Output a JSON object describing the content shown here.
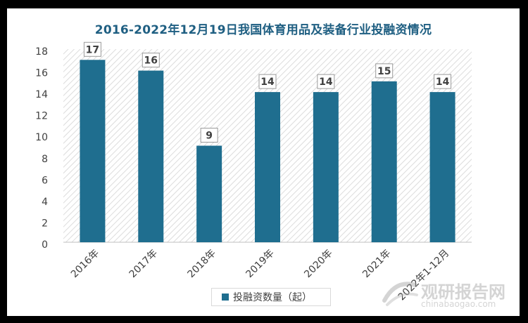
{
  "chart_data": {
    "type": "bar",
    "title": "2016-2022年12月19日我国体育用品及装备行业投融资情况",
    "categories": [
      "2016年",
      "2017年",
      "2018年",
      "2019年",
      "2020年",
      "2021年",
      "2022年1-12月"
    ],
    "series": [
      {
        "name": "投融资数量（起）",
        "values": [
          17,
          16,
          9,
          14,
          14,
          15,
          14
        ]
      }
    ],
    "ylim": [
      0,
      18
    ],
    "yticks": [
      0,
      2,
      4,
      6,
      8,
      10,
      12,
      14,
      16,
      18
    ],
    "grid": false,
    "legend": "bottom",
    "data_labels": true
  },
  "colors": {
    "bar": "#1f6e8f",
    "title": "#1f5f82",
    "plot_hatch": "#d9d9d9",
    "axis_text": "#404040"
  },
  "watermark": {
    "cn": "观研报告网",
    "en": "chinabaogao.com"
  }
}
